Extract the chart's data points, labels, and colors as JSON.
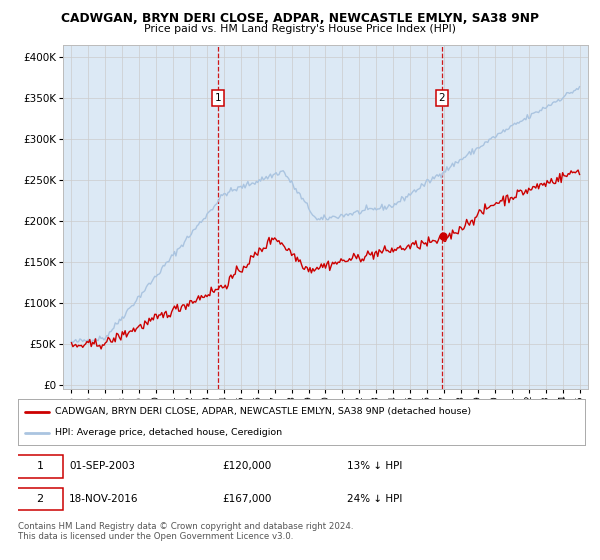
{
  "title": "CADWGAN, BRYN DERI CLOSE, ADPAR, NEWCASTLE EMLYN, SA38 9NP",
  "subtitle": "Price paid vs. HM Land Registry's House Price Index (HPI)",
  "legend_line1": "CADWGAN, BRYN DERI CLOSE, ADPAR, NEWCASTLE EMLYN, SA38 9NP (detached house)",
  "legend_line2": "HPI: Average price, detached house, Ceredigion",
  "sale1_date": "01-SEP-2003",
  "sale1_price": "£120,000",
  "sale1_hpi": "13% ↓ HPI",
  "sale2_date": "18-NOV-2016",
  "sale2_price": "£167,000",
  "sale2_hpi": "24% ↓ HPI",
  "footer": "Contains HM Land Registry data © Crown copyright and database right 2024.\nThis data is licensed under the Open Government Licence v3.0.",
  "hpi_color": "#aac4e0",
  "price_color": "#cc0000",
  "sale_vline_color": "#cc0000",
  "background_color": "#dce9f5",
  "ylim": [
    0,
    400000
  ],
  "yticks": [
    0,
    50000,
    100000,
    150000,
    200000,
    250000,
    300000,
    350000,
    400000
  ],
  "x_start_year": 1995,
  "x_end_year": 2025,
  "sale1_year": 2003.67,
  "sale2_year": 2016.88
}
